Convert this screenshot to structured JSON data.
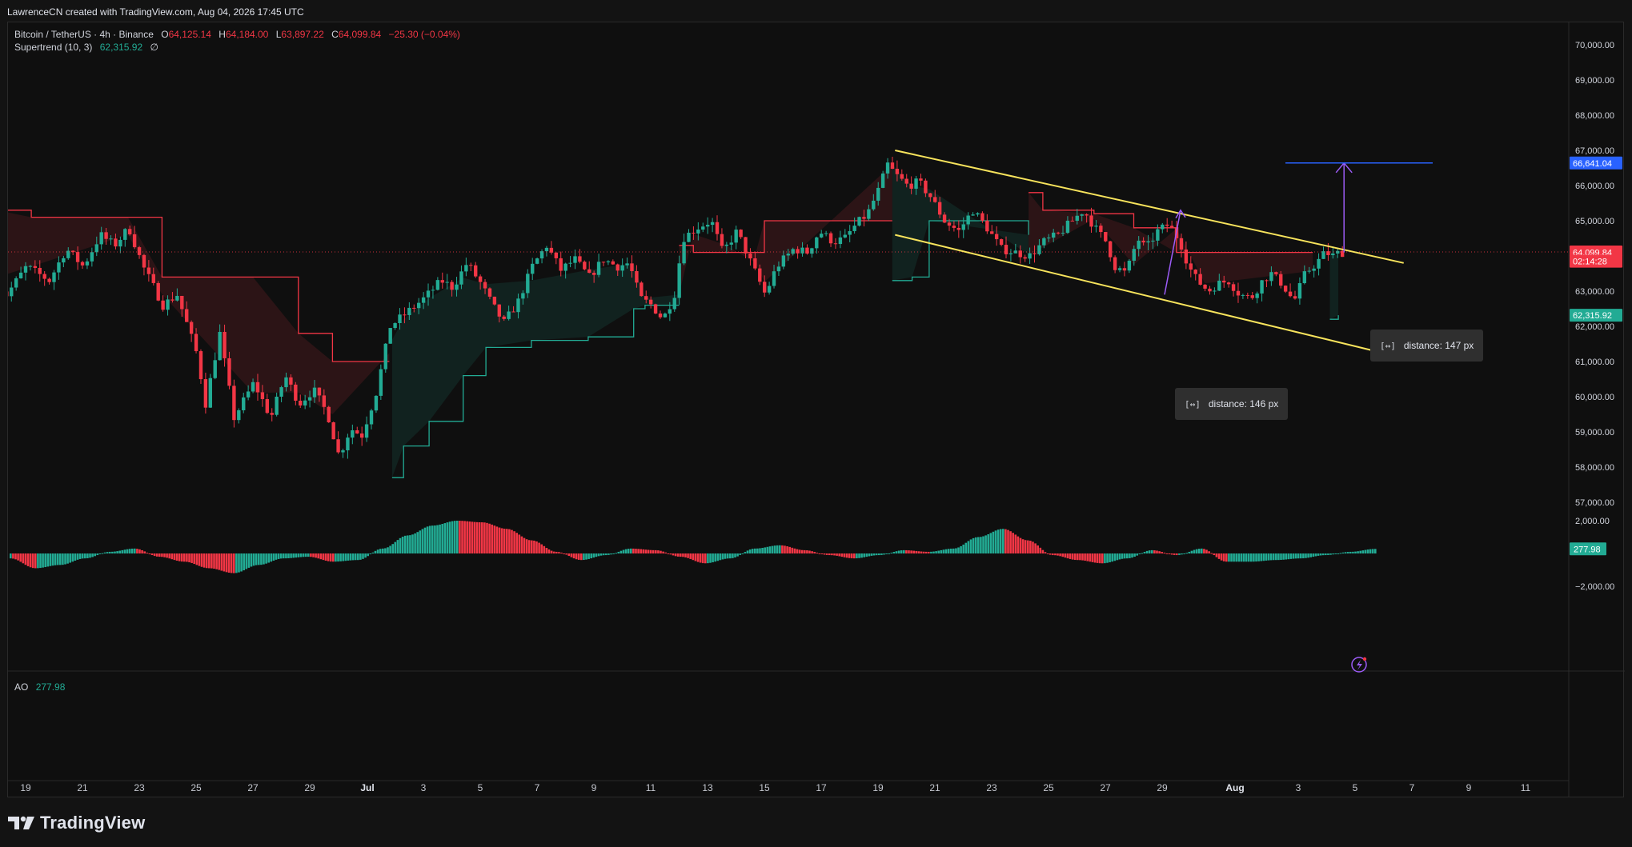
{
  "header": {
    "credit": "LawrenceCN created with TradingView.com, Aug 04, 2026 17:45 UTC"
  },
  "symbol": {
    "name": "Bitcoin / TetherUS · 4h · Binance",
    "o_label": "O",
    "o": "64,125.14",
    "h_label": "H",
    "h": "64,184.00",
    "l_label": "L",
    "l": "63,897.22",
    "c_label": "C",
    "c": "64,099.84",
    "change": "−25.30 (−0.04%)"
  },
  "indicator": {
    "name": "Supertrend (10, 3)",
    "value": "62,315.92",
    "extra": "∅"
  },
  "oscillator": {
    "name": "AO",
    "value": "277.98"
  },
  "price_axis": {
    "ticks": [
      "70,000.00",
      "69,000.00",
      "68,000.00",
      "67,000.00",
      "66,000.00",
      "65,000.00",
      "63,000.00",
      "62,000.00",
      "61,000.00",
      "60,000.00",
      "59,000.00",
      "58,000.00",
      "57,000.00"
    ],
    "tick_values": [
      70000,
      69000,
      68000,
      67000,
      66000,
      65000,
      63000,
      62000,
      61000,
      60000,
      59000,
      58000,
      57000
    ],
    "badges": [
      {
        "label": "66,641.04",
        "value": 66641.04,
        "color": "#2962ff"
      },
      {
        "label": "64,115.02",
        "value": 64115.02,
        "color": "#f23645"
      },
      {
        "label": "64,099.84",
        "value": 64099.84,
        "color": "#f23645"
      },
      {
        "label": "02:14:28",
        "value": 63850,
        "color": "#f23645"
      },
      {
        "label": "62,315.92",
        "value": 62315.92,
        "color": "#22ab94"
      }
    ]
  },
  "osc_axis": {
    "ticks": [
      "2,000.00",
      "−2,000.00"
    ],
    "tick_values": [
      2000,
      -2000
    ],
    "badge": {
      "label": "277.98",
      "value": 277.98,
      "color": "#22ab94"
    }
  },
  "time_axis": {
    "labels": [
      "19",
      "21",
      "23",
      "25",
      "27",
      "29",
      "Jul",
      "3",
      "5",
      "7",
      "9",
      "11",
      "13",
      "15",
      "17",
      "19",
      "21",
      "23",
      "25",
      "27",
      "29",
      "Aug",
      "3",
      "5",
      "7",
      "9",
      "11"
    ],
    "bold": [
      "Jul",
      "Aug"
    ]
  },
  "annotations": {
    "upper_measure": "distance: 147 px",
    "lower_measure": "distance: 146 px",
    "target_level": 66641.04
  },
  "colors": {
    "up": "#22ab94",
    "down": "#f23645",
    "channel": "#f7e35c",
    "target": "#2962ff",
    "projection": "#9c5cf7"
  },
  "chart_data": {
    "type": "candlestick",
    "title": "Bitcoin / TetherUS · 4h · Binance",
    "xlabel": "",
    "ylabel": "",
    "ylim": [
      56600,
      70500
    ],
    "x_range": [
      "Jun 18",
      "Aug 11"
    ],
    "series": [
      {
        "name": "Bitcoin / TetherUS",
        "kind": "price",
        "path": [
          [
            0,
            63400
          ],
          [
            0.5,
            62900
          ],
          [
            1.2,
            63700
          ],
          [
            2,
            63300
          ],
          [
            2.6,
            64200
          ],
          [
            3.2,
            63700
          ],
          [
            3.8,
            64600
          ],
          [
            4.3,
            64300
          ],
          [
            4.8,
            64800
          ],
          [
            5.3,
            63700
          ],
          [
            6,
            62600
          ],
          [
            6.5,
            62900
          ],
          [
            7.2,
            61200
          ],
          [
            7.5,
            59800
          ],
          [
            8,
            61800
          ],
          [
            8.5,
            59400
          ],
          [
            9.2,
            60400
          ],
          [
            9.8,
            59400
          ],
          [
            10.3,
            60600
          ],
          [
            10.8,
            59800
          ],
          [
            11.3,
            60200
          ],
          [
            11.8,
            59500
          ],
          [
            12.2,
            58300
          ],
          [
            12.6,
            59100
          ],
          [
            13,
            58900
          ],
          [
            13.5,
            60100
          ],
          [
            14,
            62000
          ],
          [
            14.6,
            62400
          ],
          [
            15.2,
            62800
          ],
          [
            15.8,
            63300
          ],
          [
            16.2,
            63100
          ],
          [
            16.7,
            63800
          ],
          [
            17.2,
            63200
          ],
          [
            17.6,
            62600
          ],
          [
            18,
            62100
          ],
          [
            18.5,
            62700
          ],
          [
            19,
            63700
          ],
          [
            19.5,
            64300
          ],
          [
            20,
            63600
          ],
          [
            20.5,
            63900
          ],
          [
            21,
            63400
          ],
          [
            21.5,
            63900
          ],
          [
            22,
            63700
          ],
          [
            22.4,
            63800
          ],
          [
            22.8,
            62800
          ],
          [
            23.2,
            62600
          ],
          [
            23.6,
            62200
          ],
          [
            24,
            62900
          ],
          [
            24.3,
            64500
          ],
          [
            24.8,
            64800
          ],
          [
            25.3,
            65000
          ],
          [
            25.7,
            64100
          ],
          [
            26.2,
            64700
          ],
          [
            26.7,
            63800
          ],
          [
            27.2,
            62900
          ],
          [
            27.6,
            63700
          ],
          [
            28.2,
            64200
          ],
          [
            28.7,
            64100
          ],
          [
            29.1,
            64700
          ],
          [
            29.6,
            64400
          ],
          [
            30,
            64500
          ],
          [
            30.4,
            64900
          ],
          [
            30.8,
            65200
          ],
          [
            31.2,
            65900
          ],
          [
            31.5,
            66600
          ],
          [
            31.8,
            66300
          ],
          [
            32.2,
            66000
          ],
          [
            32.6,
            66100
          ],
          [
            33,
            65700
          ],
          [
            33.5,
            65000
          ],
          [
            34,
            64700
          ],
          [
            34.5,
            65300
          ],
          [
            35,
            64800
          ],
          [
            35.5,
            64200
          ],
          [
            36,
            64100
          ],
          [
            36.5,
            64000
          ],
          [
            37,
            64400
          ],
          [
            37.5,
            64600
          ],
          [
            38,
            65000
          ],
          [
            38.4,
            65300
          ],
          [
            38.8,
            64800
          ],
          [
            39.2,
            64400
          ],
          [
            39.5,
            63700
          ],
          [
            39.9,
            63500
          ],
          [
            40.3,
            64500
          ],
          [
            40.6,
            64200
          ],
          [
            41,
            64700
          ],
          [
            41.4,
            64900
          ],
          [
            41.8,
            64400
          ],
          [
            42.1,
            63700
          ],
          [
            42.4,
            63300
          ],
          [
            42.8,
            63000
          ],
          [
            43.1,
            63200
          ],
          [
            43.5,
            63300
          ],
          [
            43.9,
            62900
          ],
          [
            44.3,
            62800
          ],
          [
            44.7,
            63300
          ],
          [
            45,
            63500
          ],
          [
            45.4,
            63200
          ],
          [
            45.8,
            62700
          ],
          [
            46.2,
            63500
          ],
          [
            46.6,
            63800
          ],
          [
            46.9,
            64100
          ],
          [
            47.2,
            64000
          ],
          [
            47.4,
            64100
          ]
        ],
        "note": "approximate closing-price path; x = days after Jun 18"
      },
      {
        "name": "Supertrend (10, 3)",
        "kind": "supertrend",
        "segments": [
          {
            "trend": "down",
            "path": [
              [
                0,
                65300
              ],
              [
                1.2,
                65100
              ],
              [
                4.6,
                65100
              ],
              [
                5.8,
                63400
              ],
              [
                9,
                63400
              ],
              [
                10.6,
                61800
              ],
              [
                11.8,
                61000
              ],
              [
                13.8,
                61000
              ]
            ]
          },
          {
            "trend": "up",
            "path": [
              [
                13.9,
                57700
              ],
              [
                14.3,
                58600
              ],
              [
                15.2,
                59300
              ],
              [
                16.4,
                60600
              ],
              [
                17.2,
                61400
              ],
              [
                18.8,
                61600
              ],
              [
                20.8,
                61700
              ],
              [
                22.4,
                62500
              ],
              [
                22.8,
                62600
              ],
              [
                24,
                62600
              ]
            ]
          },
          {
            "trend": "down",
            "path": [
              [
                24,
                64300
              ],
              [
                24.5,
                64100
              ],
              [
                25.6,
                64100
              ],
              [
                26.7,
                64100
              ],
              [
                27,
                65000
              ],
              [
                31.5,
                65000
              ]
            ]
          },
          {
            "trend": "up",
            "path": [
              [
                31.5,
                63300
              ],
              [
                32.2,
                63400
              ],
              [
                32.8,
                65000
              ],
              [
                36.3,
                64600
              ]
            ]
          },
          {
            "trend": "down",
            "path": [
              [
                36.3,
                65800
              ],
              [
                36.8,
                65300
              ],
              [
                38.6,
                65200
              ],
              [
                40,
                64800
              ],
              [
                41.5,
                64100
              ],
              [
                42.5,
                64100
              ],
              [
                43.5,
                64100
              ],
              [
                46.3,
                64100
              ]
            ]
          },
          {
            "trend": "up",
            "path": [
              [
                46.9,
                62200
              ],
              [
                47.2,
                62315.92
              ]
            ]
          }
        ]
      },
      {
        "name": "AO",
        "kind": "oscillator",
        "points": [
          [
            0,
            -300
          ],
          [
            1,
            -900
          ],
          [
            2,
            -700
          ],
          [
            3,
            -300
          ],
          [
            4,
            100
          ],
          [
            5,
            300
          ],
          [
            6,
            -200
          ],
          [
            7,
            -500
          ],
          [
            8,
            -900
          ],
          [
            9,
            -1200
          ],
          [
            10,
            -700
          ],
          [
            11,
            -300
          ],
          [
            12,
            -200
          ],
          [
            13,
            -500
          ],
          [
            14,
            -400
          ],
          [
            15,
            300
          ],
          [
            16,
            1100
          ],
          [
            17,
            1700
          ],
          [
            18,
            2000
          ],
          [
            19,
            1900
          ],
          [
            20,
            1500
          ],
          [
            21,
            800
          ],
          [
            22,
            100
          ],
          [
            23,
            -400
          ],
          [
            24,
            -100
          ],
          [
            25,
            300
          ],
          [
            26,
            200
          ],
          [
            27,
            -200
          ],
          [
            28,
            -600
          ],
          [
            29,
            -300
          ],
          [
            30,
            300
          ],
          [
            31,
            500
          ],
          [
            32,
            200
          ],
          [
            33,
            -100
          ],
          [
            34,
            -300
          ],
          [
            35,
            -100
          ],
          [
            36,
            200
          ],
          [
            37,
            100
          ],
          [
            38,
            300
          ],
          [
            39,
            1000
          ],
          [
            40,
            1500
          ],
          [
            41,
            800
          ],
          [
            42,
            -100
          ],
          [
            43,
            -400
          ],
          [
            44,
            -600
          ],
          [
            45,
            -300
          ],
          [
            46,
            200
          ],
          [
            47,
            -100
          ],
          [
            48,
            300
          ],
          [
            49,
            -500
          ],
          [
            50,
            -500
          ],
          [
            51,
            -400
          ],
          [
            52,
            -300
          ],
          [
            53,
            -100
          ],
          [
            54,
            100
          ],
          [
            55,
            277.98
          ]
        ],
        "note": "approximate histogram envelope; x = bar-group index"
      }
    ],
    "drawings": {
      "channel_upper": [
        [
          31.6,
          67000
        ],
        [
          49.5,
          63800
        ]
      ],
      "channel_lower": [
        [
          31.6,
          64600
        ],
        [
          49.5,
          61100
        ]
      ],
      "target_level": 66641.04,
      "projection_arrow": [
        [
          47.4,
          64100
        ],
        [
          47.4,
          66641.04
        ]
      ]
    }
  }
}
